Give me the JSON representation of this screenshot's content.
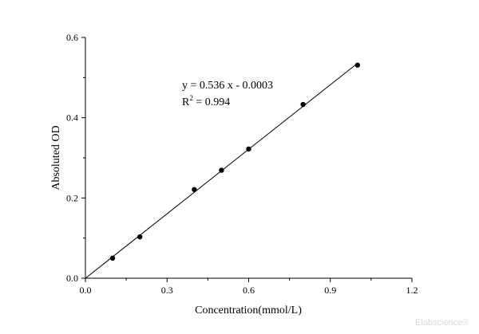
{
  "chart_data": {
    "type": "scatter",
    "title": "",
    "xlabel": "Concentration(mmol/L)",
    "ylabel": "Absoluted OD",
    "xlim": [
      0.0,
      1.2
    ],
    "ylim": [
      0.0,
      0.6
    ],
    "x_ticks": [
      "0.0",
      "0.3",
      "0.6",
      "0.9",
      "1.2"
    ],
    "y_ticks": [
      "0.0",
      "0.2",
      "0.4",
      "0.6"
    ],
    "grid": false,
    "series": [
      {
        "points": [
          {
            "x": 0.1,
            "y": 0.05
          },
          {
            "x": 0.2,
            "y": 0.103
          },
          {
            "x": 0.4,
            "y": 0.221
          },
          {
            "x": 0.5,
            "y": 0.269
          },
          {
            "x": 0.6,
            "y": 0.322
          },
          {
            "x": 0.8,
            "y": 0.433
          },
          {
            "x": 1.0,
            "y": 0.531
          }
        ]
      }
    ],
    "fit_line": {
      "slope": 0.536,
      "intercept": -0.0003,
      "x_range": [
        0.0,
        1.0
      ]
    },
    "annotations": {
      "equation": "y = 0.536 x - 0.0003",
      "r2_label": "R",
      "r2_sup": "2",
      "r2_value": " = 0.994"
    }
  },
  "watermark": "Elabscience®"
}
